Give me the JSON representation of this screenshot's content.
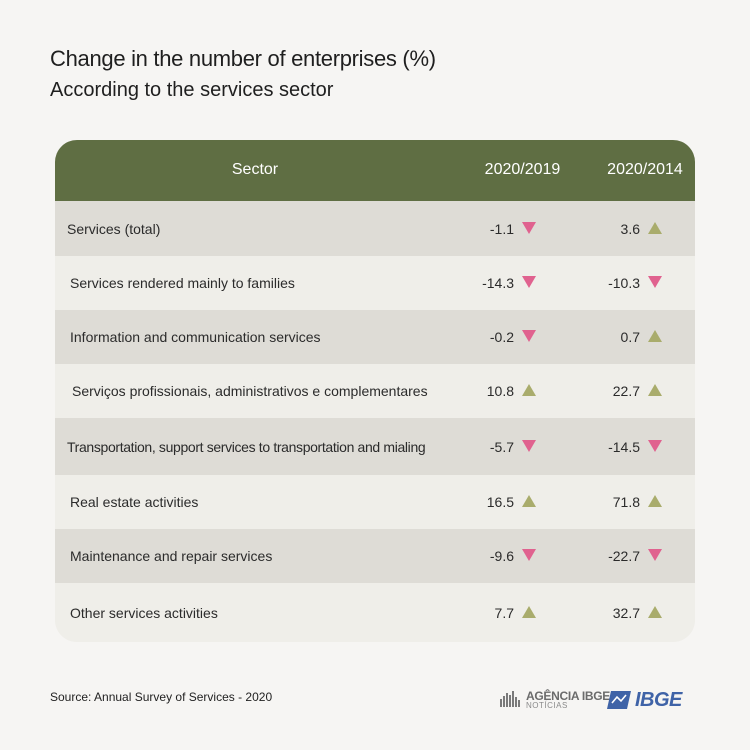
{
  "title": "Change in the number of enterprises (%)",
  "subtitle": "According to the services sector",
  "chart_data": {
    "type": "table",
    "columns": [
      "Sector",
      "2020/2019",
      "2020/2014"
    ],
    "rows": [
      {
        "sector": "Services (total)",
        "c1": "-1.1",
        "c1_dir": "down",
        "c2": "3.6",
        "c2_dir": "up"
      },
      {
        "sector": "Services rendered mainly to families",
        "c1": "-14.3",
        "c1_dir": "down",
        "c2": "-10.3",
        "c2_dir": "down"
      },
      {
        "sector": "Information and communication services",
        "c1": "-0.2",
        "c1_dir": "down",
        "c2": "0.7",
        "c2_dir": "up"
      },
      {
        "sector": "Serviços profissionais, administrativos e complementares",
        "c1": "10.8",
        "c1_dir": "up",
        "c2": "22.7",
        "c2_dir": "up"
      },
      {
        "sector": "Transportation, support services to transportation and mialing",
        "c1": "-5.7",
        "c1_dir": "down",
        "c2": "-14.5",
        "c2_dir": "down"
      },
      {
        "sector": "Real estate activities",
        "c1": "16.5",
        "c1_dir": "up",
        "c2": "71.8",
        "c2_dir": "up"
      },
      {
        "sector": "Maintenance and repair services",
        "c1": "-9.6",
        "c1_dir": "down",
        "c2": "-22.7",
        "c2_dir": "down"
      },
      {
        "sector": "Other services activities",
        "c1": "7.7",
        "c1_dir": "up",
        "c2": "32.7",
        "c2_dir": "up"
      }
    ]
  },
  "colors": {
    "header_bg": "#5f6e43",
    "up_arrow": "#a9ac6c",
    "down_arrow": "#e0628f",
    "row_dark": "#dedcd6",
    "row_light": "#efeee9"
  },
  "source": "Source: Annual Survey of Services - 2020",
  "logos": {
    "agencia_main": "AGÊNCIA IBGE",
    "agencia_sub": "NOTÍCIAS",
    "ibge": "IBGE"
  }
}
